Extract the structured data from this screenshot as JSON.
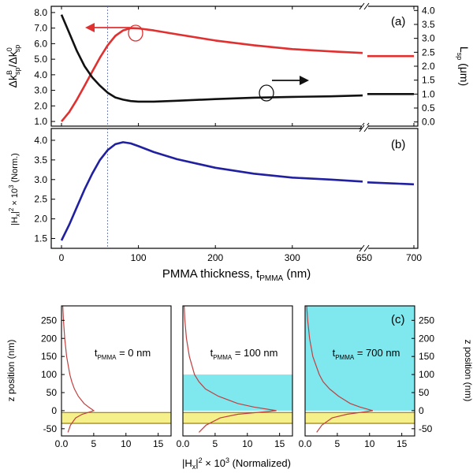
{
  "figure": {
    "panel_a_tag": "(a)",
    "panel_b_tag": "(b)",
    "panel_c_tag": "(c)",
    "shared_xlabel": "PMMA thickness, t",
    "shared_xlabel_sub": "PMMA",
    "shared_xlabel_unit": " (nm)",
    "c_xlabel": "|H",
    "c_xlabel_sub": "x",
    "c_xlabel_rest": "|",
    "c_xlabel_sup": "2",
    "c_xlabel_tail": " × 10",
    "c_xlabel_sup2": "3",
    "c_xlabel_end": " (Normalized)"
  },
  "chart_data": [
    {
      "id": "a",
      "type": "line",
      "ylabel_left": "Δk",
      "ylabel_left_sup": "B",
      "ylabel_left_sub": "sp",
      "ylabel_left_mid": "/Δk",
      "ylabel_left_sup2": "0",
      "ylabel_left_sub2": "sp",
      "ylabel_right": "L",
      "ylabel_right_sub": "sp",
      "ylabel_right_unit": " (μm)",
      "xticks": [
        "0",
        "100",
        "200",
        "300",
        "650",
        "700"
      ],
      "yticks_left": [
        "1.0",
        "2.0",
        "3.0",
        "4.0",
        "5.0",
        "6.0",
        "7.0",
        "8.0"
      ],
      "yticks_right": [
        "0.0",
        "0.5",
        "1.0",
        "1.5",
        "2.0",
        "2.5",
        "3.0",
        "3.5",
        "4.0"
      ],
      "ylim_left": [
        0.7,
        8.4
      ],
      "ylim_right": [
        -0.15,
        4.15
      ],
      "vline_x": 60,
      "series": [
        {
          "axis": "left",
          "color": "#e03030",
          "x": [
            0,
            10,
            20,
            30,
            40,
            50,
            60,
            70,
            80,
            90,
            100,
            120,
            150,
            200,
            250,
            300,
            350,
            400,
            650,
            660,
            680,
            700
          ],
          "y": [
            1.0,
            1.6,
            2.4,
            3.3,
            4.2,
            5.1,
            5.9,
            6.5,
            6.85,
            7.0,
            6.98,
            6.85,
            6.6,
            6.2,
            5.9,
            5.65,
            5.5,
            5.4,
            5.2,
            5.2,
            5.2,
            5.2
          ]
        },
        {
          "axis": "right",
          "color": "#111111",
          "x": [
            0,
            10,
            20,
            30,
            40,
            50,
            60,
            70,
            80,
            90,
            100,
            120,
            150,
            200,
            250,
            300,
            350,
            400,
            650,
            660,
            680,
            700
          ],
          "y": [
            3.85,
            3.2,
            2.55,
            2.0,
            1.6,
            1.3,
            1.05,
            0.88,
            0.8,
            0.75,
            0.73,
            0.73,
            0.76,
            0.82,
            0.87,
            0.9,
            0.92,
            0.95,
            1.0,
            1.0,
            1.0,
            1.0
          ]
        }
      ]
    },
    {
      "id": "b",
      "type": "line",
      "ylabel": "|H",
      "ylabel_sub": "x",
      "ylabel_mid": "|",
      "ylabel_sup": "2",
      "ylabel_tail": " × 10",
      "ylabel_sup2": "3",
      "ylabel_end": " (Norm.)",
      "xticks": [
        "0",
        "100",
        "200",
        "300",
        "650",
        "700"
      ],
      "yticks": [
        "1.5",
        "2.0",
        "2.5",
        "3.0",
        "3.5",
        "4.0"
      ],
      "ylim": [
        1.25,
        4.3
      ],
      "series": [
        {
          "color": "#2020a0",
          "x": [
            0,
            10,
            20,
            30,
            40,
            50,
            60,
            70,
            80,
            90,
            100,
            120,
            150,
            200,
            250,
            300,
            350,
            400,
            650,
            660,
            680,
            700
          ],
          "y": [
            1.45,
            1.85,
            2.3,
            2.75,
            3.15,
            3.5,
            3.75,
            3.9,
            3.95,
            3.92,
            3.85,
            3.7,
            3.52,
            3.3,
            3.15,
            3.05,
            3.0,
            2.95,
            2.93,
            2.92,
            2.9,
            2.88
          ]
        }
      ]
    },
    {
      "id": "c",
      "type": "line",
      "ylabel": "z position (nm)",
      "xticks": [
        "0.0",
        "5",
        "10",
        "15"
      ],
      "yticks": [
        "-50",
        "0",
        "50",
        "100",
        "150",
        "200",
        "250"
      ],
      "xlim": [
        0,
        17
      ],
      "ylim": [
        -70,
        290
      ],
      "subpanels": [
        {
          "label_t": "t",
          "label_sub": "PMMA",
          "label_val": " = 0 nm",
          "pmma_top": 0,
          "z": [
            -60,
            -40,
            -20,
            -10,
            0,
            10,
            20,
            40,
            60,
            80,
            100,
            150,
            200,
            250,
            290
          ],
          "h": [
            1.0,
            1.4,
            2.2,
            3.2,
            5.0,
            4.2,
            3.5,
            2.6,
            2.0,
            1.6,
            1.3,
            0.8,
            0.5,
            0.3,
            0.2
          ]
        },
        {
          "label_t": "t",
          "label_sub": "PMMA",
          "label_val": " = 100 nm",
          "pmma_top": 100,
          "z": [
            -60,
            -40,
            -20,
            -10,
            0,
            10,
            20,
            40,
            60,
            80,
            100,
            150,
            200,
            250,
            290
          ],
          "h": [
            2.5,
            3.6,
            5.8,
            8.5,
            14.5,
            11.0,
            8.5,
            5.5,
            3.5,
            2.5,
            1.8,
            1.0,
            0.55,
            0.3,
            0.2
          ]
        },
        {
          "label_t": "t",
          "label_sub": "PMMA",
          "label_val": " = 700 nm",
          "pmma_top": 290,
          "z": [
            -60,
            -40,
            -20,
            -10,
            0,
            10,
            20,
            40,
            60,
            80,
            100,
            150,
            200,
            250,
            290
          ],
          "h": [
            1.8,
            2.6,
            4.2,
            6.5,
            10.5,
            8.5,
            7.0,
            5.2,
            3.8,
            2.8,
            2.2,
            1.2,
            0.7,
            0.4,
            0.25
          ]
        }
      ]
    }
  ],
  "colors": {
    "red": "#e03030",
    "black": "#111111",
    "blue": "#2020a0",
    "cyan": "#7fe7ee",
    "yellow": "#f5f08a",
    "gold_line": "#8a7000",
    "profile": "#c04040"
  }
}
